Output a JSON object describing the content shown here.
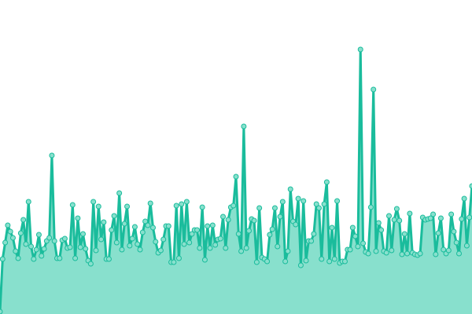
{
  "chart_data": {
    "type": "area",
    "title": "",
    "xlabel": "",
    "ylabel": "",
    "ylim": [
      0,
      400
    ],
    "grid": false,
    "legend": "none",
    "colors": {
      "line": "#1abc9c",
      "fill": "#88e0cd",
      "point_fill": "#88e0cd"
    },
    "series": [
      {
        "values": [
          3,
          70,
          91,
          113,
          105,
          97,
          80,
          71,
          103,
          120,
          89,
          143,
          86,
          70,
          82,
          101,
          74,
          83,
          93,
          97,
          202,
          93,
          71,
          71,
          94,
          96,
          84,
          85,
          139,
          71,
          122,
          85,
          102,
          83,
          68,
          64,
          143,
          81,
          137,
          95,
          117,
          70,
          70,
          107,
          125,
          91,
          154,
          82,
          115,
          137,
          87,
          96,
          111,
          89,
          82,
          104,
          118,
          113,
          141,
          110,
          92,
          78,
          81,
          95,
          112,
          112,
          66,
          66,
          138,
          71,
          140,
          89,
          143,
          91,
          102,
          107,
          107,
          84,
          136,
          69,
          112,
          84,
          113,
          88,
          95,
          96,
          124,
          84,
          120,
          136,
          138,
          175,
          102,
          80,
          239,
          84,
          106,
          121,
          119,
          66,
          135,
          72,
          70,
          67,
          101,
          108,
          135,
          86,
          124,
          143,
          67,
          80,
          159,
          118,
          114,
          147,
          62,
          144,
          68,
          93,
          93,
          102,
          140,
          135,
          70,
          140,
          168,
          67,
          110,
          70,
          144,
          65,
          67,
          67,
          82,
          82,
          110,
          99,
          86,
          337,
          90,
          79,
          77,
          136,
          286,
          80,
          116,
          107,
          80,
          78,
          125,
          81,
          120,
          134,
          119,
          76,
          102,
          77,
          128,
          78,
          76,
          75,
          77,
          123,
          120,
          121,
          122,
          127,
          76,
          103,
          122,
          82,
          77,
          81,
          127,
          105,
          91,
          77,
          121,
          147,
          87,
          123,
          163
        ]
      }
    ]
  }
}
